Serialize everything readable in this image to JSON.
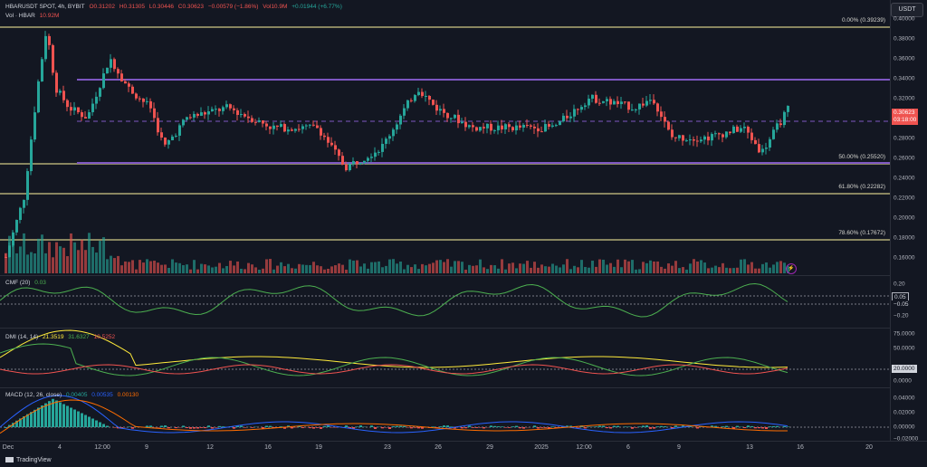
{
  "header": {
    "symbol": "HBARUSDT SPOT, 4h, BYBIT",
    "open": "O0.31202",
    "high": "H0.31305",
    "low": "L0.30446",
    "close": "C0.30623",
    "change": "−0.00579 (−1.86%)",
    "vol": "Vol10.9M",
    "range": "+0.01944 (+6.77%)",
    "vol_label": "Vol · HBAR",
    "vol_value": "10.92M"
  },
  "currency_button": "USDT",
  "price_scale": [
    "0.40000",
    "0.38000",
    "0.36000",
    "0.34000",
    "0.32000",
    "0.28000",
    "0.26000",
    "0.24000",
    "0.22000",
    "0.20000",
    "0.18000",
    "0.16000"
  ],
  "price_tag": {
    "value": "0.30623",
    "countdown": "03:18:00"
  },
  "fib_levels": [
    "0.00% (0.39239)",
    "50.00% (0.25520)",
    "61.80% (0.22282)",
    "78.60% (0.17672)"
  ],
  "cmf": {
    "label": "CMF (20)",
    "value": "0.03",
    "scale": [
      "0.20",
      "0.05",
      "−0.05",
      "−0.20"
    ]
  },
  "dmi": {
    "label": "DMI (14, 14)",
    "adx": "21.3519",
    "plus": "31.6327",
    "minus": "10.5252",
    "scale": [
      "75.0000",
      "50.0000",
      "20.0000",
      "0.0000"
    ]
  },
  "macd": {
    "label": "MACD (12, 26, close)",
    "hist": "0.00405",
    "macd": "0.00535",
    "signal": "0.00130",
    "scale": [
      "0.04000",
      "0.02000",
      "0.00000",
      "−0.02000"
    ]
  },
  "time_axis": [
    "Dec",
    "4",
    "12:00",
    "9",
    "12",
    "16",
    "19",
    "23",
    "26",
    "29",
    "2025",
    "12:00",
    "6",
    "9",
    "13",
    "16",
    "20"
  ],
  "brand": "TradingView",
  "colors": {
    "up": "#26a69a",
    "down": "#ef5350",
    "fib": "#fff59d",
    "purple": "#7e57c2",
    "bg": "#131722"
  }
}
